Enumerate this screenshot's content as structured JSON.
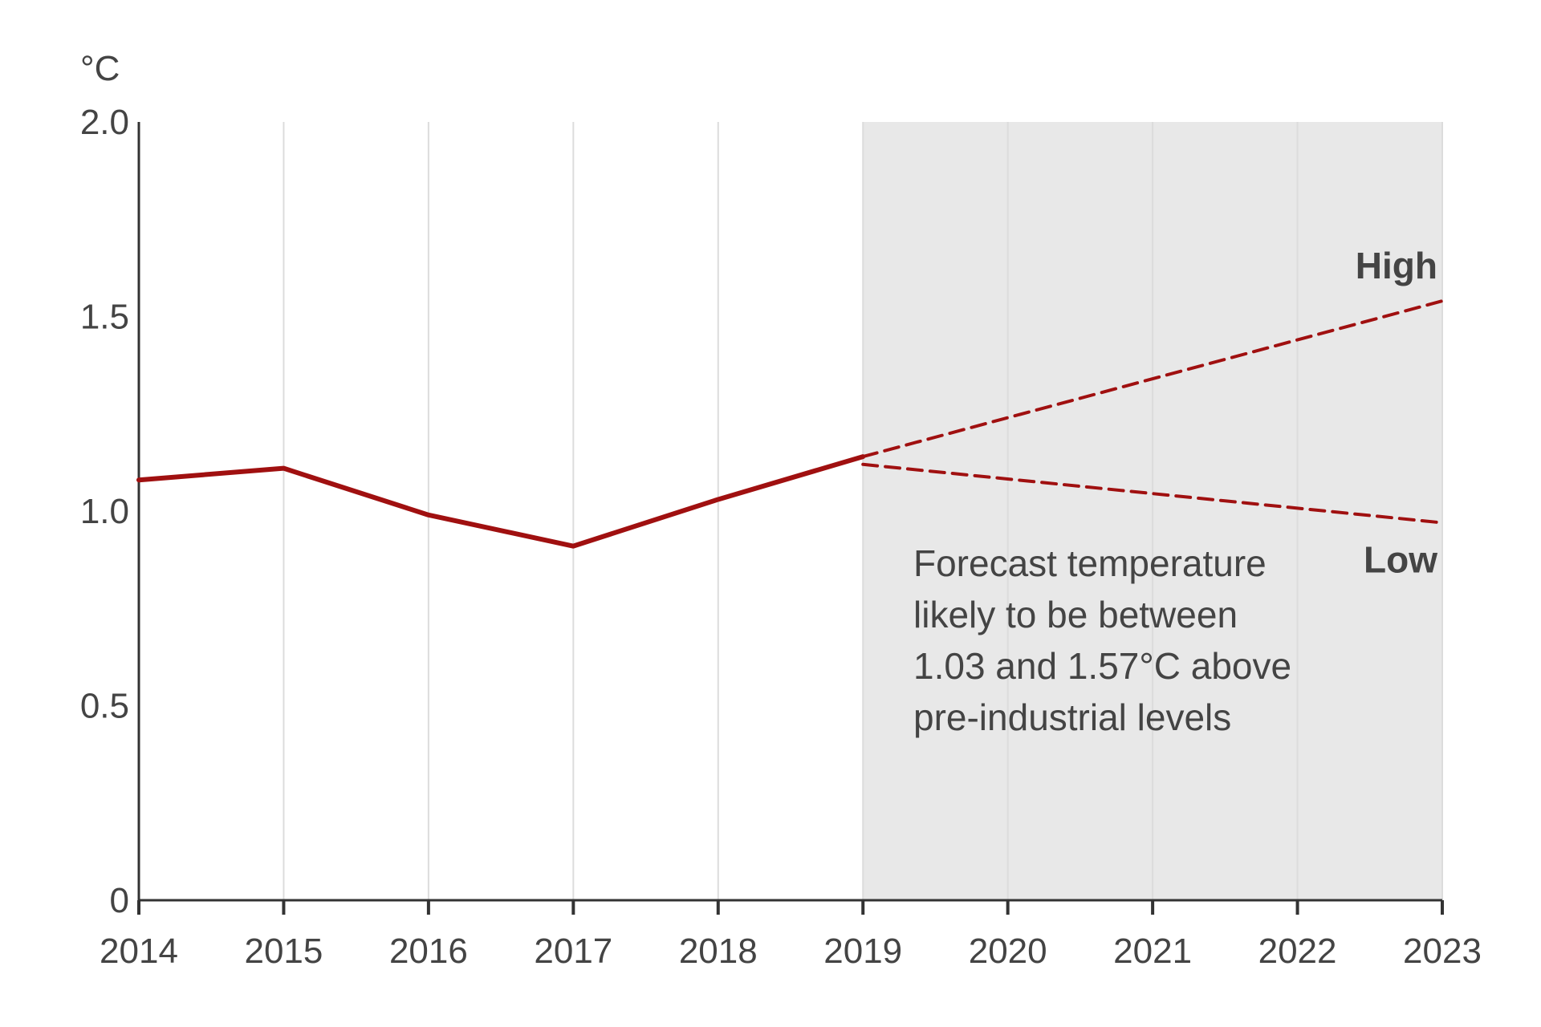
{
  "chart_data": {
    "type": "line",
    "ylabel": "°C",
    "ylim": [
      0,
      2.0
    ],
    "yticks": [
      "0",
      "0.5",
      "1.0",
      "1.5",
      "2.0"
    ],
    "xlim": [
      2014,
      2023
    ],
    "xticks": [
      "2014",
      "2015",
      "2016",
      "2017",
      "2018",
      "2019",
      "2020",
      "2021",
      "2022",
      "2023"
    ],
    "grid": "vertical",
    "forecast_region": {
      "from": 2019,
      "to": 2023
    },
    "series": [
      {
        "x": [
          2014,
          2015,
          2016,
          2017,
          2018,
          2019
        ],
        "y": [
          1.08,
          1.11,
          0.99,
          0.91,
          1.03,
          1.14
        ],
        "style": "solid"
      },
      {
        "name": "High",
        "x": [
          2019,
          2023
        ],
        "y": [
          1.14,
          1.54
        ],
        "style": "dashed"
      },
      {
        "name": "Low",
        "x": [
          2019,
          2023
        ],
        "y": [
          1.12,
          0.97
        ],
        "style": "dashed"
      }
    ],
    "annotation": [
      "Forecast temperature",
      "likely to be between",
      "1.03 and 1.57°C above",
      "pre-industrial levels"
    ],
    "colors": {
      "line": "#a01010",
      "forecast_bg": "#e8e8e8",
      "grid": "#dcdcdc",
      "axis": "#333333"
    }
  }
}
